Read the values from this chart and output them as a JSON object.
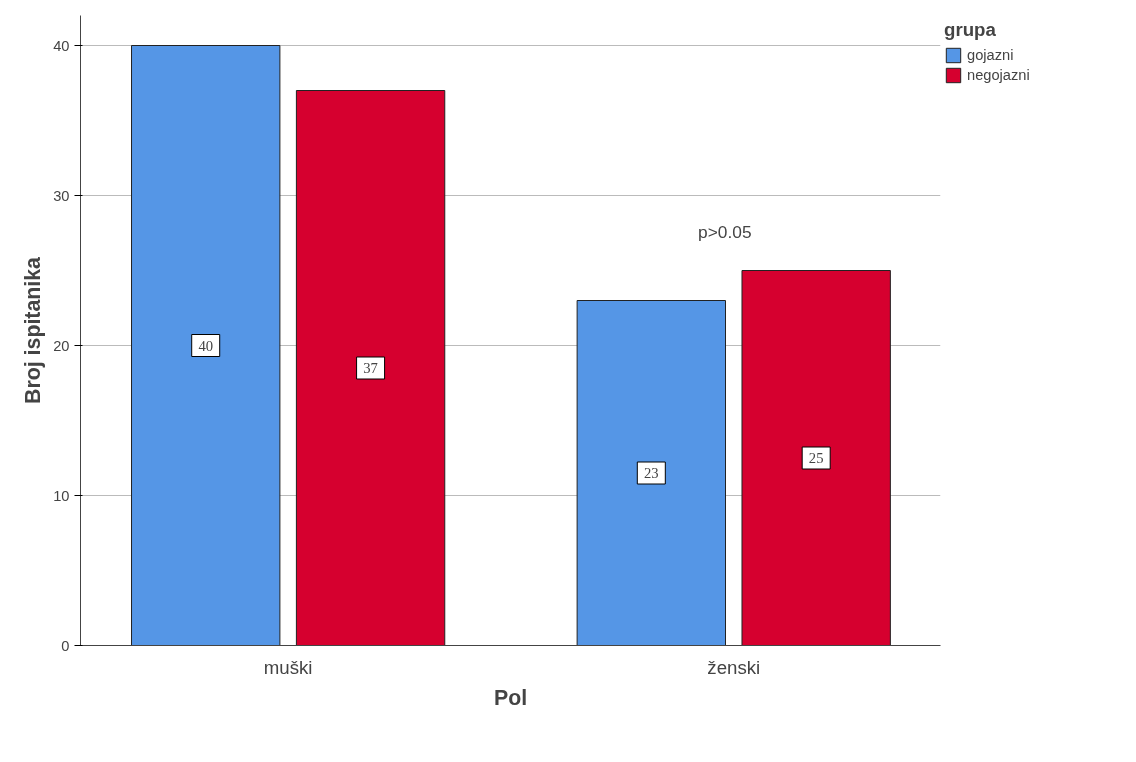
{
  "chart_data": {
    "type": "bar",
    "xlabel": "Pol",
    "ylabel": "Broj ispitanika",
    "legend_title": "grupa",
    "categories": [
      "muški",
      "ženski"
    ],
    "series": [
      {
        "name": "gojazni",
        "color": "#5596e6",
        "values": [
          40,
          23
        ]
      },
      {
        "name": "negojazni",
        "color": "#d6002f",
        "values": [
          37,
          25
        ]
      }
    ],
    "ylim": [
      0,
      42
    ],
    "yticks": [
      0,
      10,
      20,
      30,
      40
    ],
    "grid": "y",
    "legend": "top right",
    "data_labels": true,
    "annotations": [
      "p>0.05"
    ]
  }
}
